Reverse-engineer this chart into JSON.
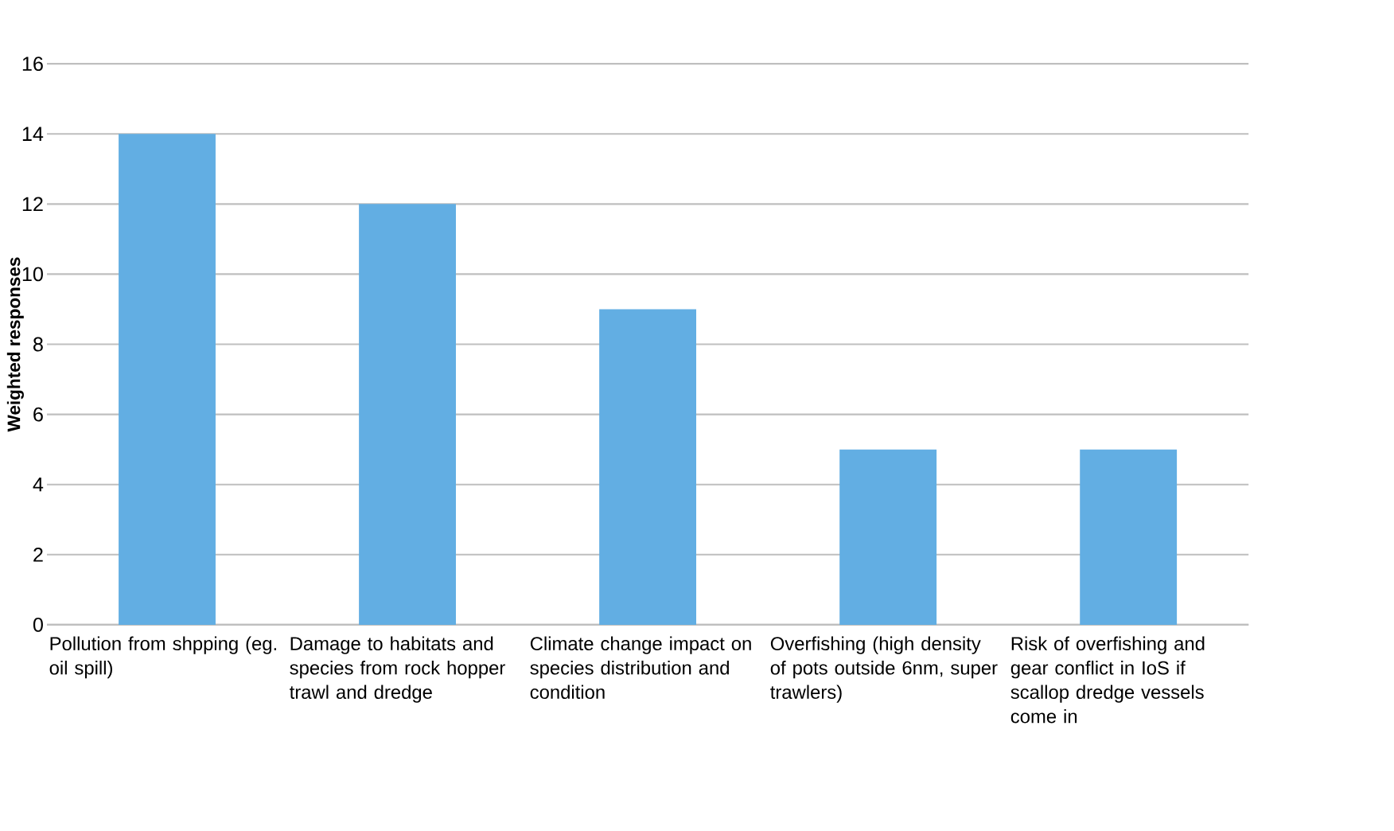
{
  "chart_data": {
    "type": "bar",
    "ylabel": "Weighted responses",
    "categories": [
      "Pollution from shpping (eg. oil spill)",
      "Damage to habitats and species from rock hopper trawl and dredge",
      "Climate change impact on species distribution and condition",
      "Overfishing (high density of pots outside 6nm, super trawlers)",
      "Risk of overfishing and gear conflict in IoS if scallop dredge vessels come in"
    ],
    "values": [
      14,
      12,
      9,
      5,
      5
    ],
    "color": "#62aee3",
    "ylim": [
      0,
      16
    ],
    "yticks": [
      0,
      2,
      4,
      6,
      8,
      10,
      12,
      14,
      16
    ],
    "grid": "y"
  }
}
